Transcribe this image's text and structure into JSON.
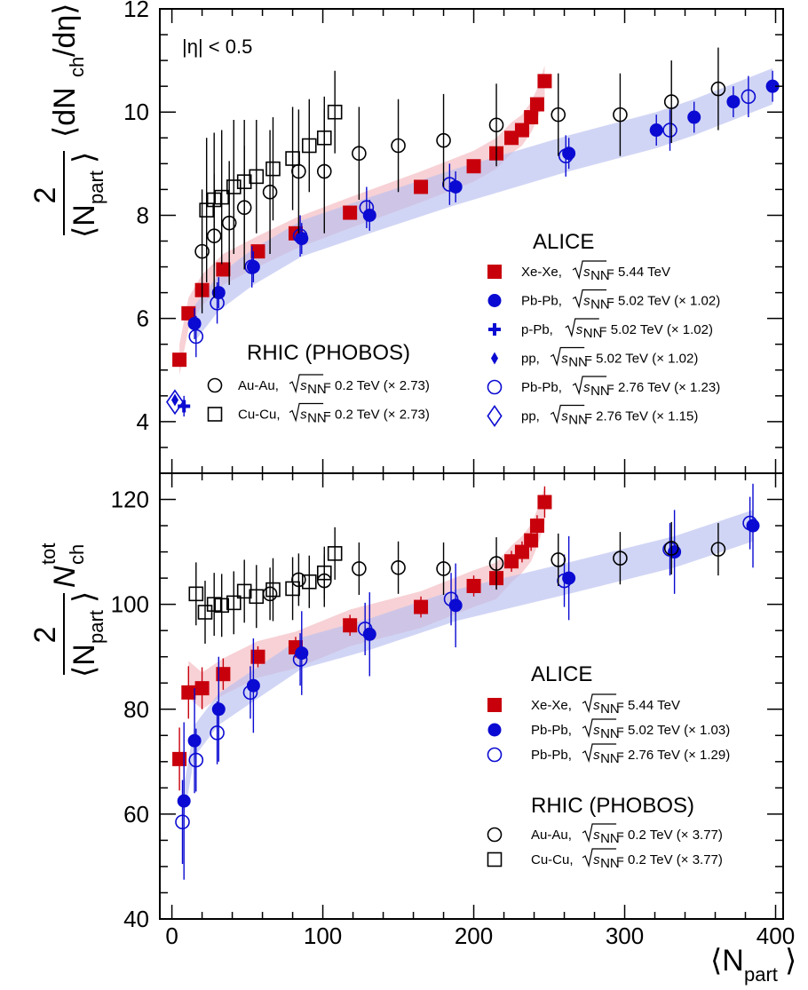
{
  "colors": {
    "xexe": "#c8000c",
    "pbpb": "#0a0ad2",
    "band_red": "#f2b8be",
    "band_blue": "#b8bff0",
    "rhic": "#000000"
  },
  "xaxis": {
    "label_main": "⟨N",
    "label_sub": "part",
    "label_close": "⟩",
    "ticks": [
      "0",
      "100",
      "200",
      "300",
      "400"
    ]
  },
  "top_panel": {
    "eta_cut": "|η| < 0.5",
    "ylabel_two": "2",
    "ylabel_den": "⟨N",
    "ylabel_den_sub": "part",
    "ylabel_den_close": "⟩",
    "ylabel_num": "⟨dN",
    "ylabel_num_sub": "ch",
    "ylabel_num_tail": " /dη⟩",
    "yticks": [
      "4",
      "6",
      "8",
      "10",
      "12"
    ],
    "alice_header": "ALICE",
    "rhic_header": "RHIC (PHOBOS)",
    "legend": [
      {
        "marker": "filled-square",
        "pre": "Xe-Xe, ",
        "post": " = 5.44 TeV"
      },
      {
        "marker": "filled-circle",
        "pre": "Pb-Pb, ",
        "post": " = 5.02 TeV (× 1.02)"
      },
      {
        "marker": "cross",
        "pre": "p-Pb, ",
        "post": " = 5.02 TeV (× 1.02)"
      },
      {
        "marker": "filled-diamond",
        "pre": "pp, ",
        "post": " = 5.02 TeV (× 1.02)"
      },
      {
        "marker": "open-circle-blue",
        "pre": "Pb-Pb, ",
        "post": " = 2.76 TeV (× 1.23)"
      },
      {
        "marker": "open-diamond",
        "pre": "pp, ",
        "post": " = 2.76 TeV (× 1.15)"
      }
    ],
    "rhic_legend": [
      {
        "marker": "open-circle",
        "pre": "Au-Au, ",
        "post": " = 0.2 TeV (× 2.73)"
      },
      {
        "marker": "open-square",
        "pre": "Cu-Cu, ",
        "post": " = 0.2 TeV (× 2.73)"
      }
    ]
  },
  "bottom_panel": {
    "ylabel_two": "2",
    "ylabel_den": "⟨N",
    "ylabel_den_sub": "part",
    "ylabel_den_close": "⟩",
    "ylabel_num": "N",
    "ylabel_num_sub": "ch",
    "ylabel_num_sup": "tot",
    "yticks": [
      "40",
      "60",
      "80",
      "100",
      "120"
    ],
    "alice_header": "ALICE",
    "rhic_header": "RHIC (PHOBOS)",
    "legend": [
      {
        "marker": "filled-square",
        "pre": "Xe-Xe, ",
        "post": " = 5.44 TeV"
      },
      {
        "marker": "filled-circle",
        "pre": "Pb-Pb, ",
        "post": " = 5.02 TeV (× 1.03)"
      },
      {
        "marker": "open-circle-blue",
        "pre": "Pb-Pb, ",
        "post": " = 2.76 TeV (× 1.29)"
      }
    ],
    "rhic_legend": [
      {
        "marker": "open-circle",
        "pre": "Au-Au, ",
        "post": " = 0.2 TeV (× 3.77)"
      },
      {
        "marker": "open-square",
        "pre": "Cu-Cu, ",
        "post": " = 0.2 TeV (× 3.77)"
      }
    ]
  },
  "sqrt_label": {
    "s": "s",
    "sub": "NN"
  },
  "chart_data": [
    {
      "type": "scatter",
      "panel": "top",
      "xlim": [
        -8,
        405
      ],
      "ylim": [
        3,
        12
      ],
      "grid": false,
      "series": [
        {
          "name": "Xe-Xe",
          "marker": "filled-square",
          "color": "xexe",
          "x": [
            5,
            11,
            20,
            34,
            57,
            82,
            118,
            165,
            200,
            215,
            225,
            232,
            238,
            242,
            247
          ],
          "y": [
            5.2,
            6.1,
            6.55,
            6.95,
            7.3,
            7.65,
            8.05,
            8.55,
            8.95,
            9.2,
            9.5,
            9.65,
            9.9,
            10.15,
            10.6
          ],
          "err": [
            0,
            0,
            0,
            0,
            0,
            0,
            0,
            0,
            0,
            0,
            0,
            0,
            0,
            0,
            0
          ]
        },
        {
          "name": "Pb-Pb 5.02",
          "marker": "filled-circle",
          "color": "pbpb",
          "x": [
            15,
            31,
            54,
            86,
            131,
            188,
            263,
            321,
            346,
            372,
            398
          ],
          "y": [
            5.9,
            6.5,
            7.0,
            7.55,
            8.0,
            8.55,
            9.2,
            9.65,
            9.9,
            10.2,
            10.5
          ],
          "err": [
            0.3,
            0.3,
            0.3,
            0.3,
            0.3,
            0.3,
            0.3,
            0.3,
            0.3,
            0.3,
            0.3
          ]
        },
        {
          "name": "p-Pb",
          "marker": "cross",
          "color": "pbpb",
          "x": [
            8
          ],
          "y": [
            4.3
          ],
          "err": [
            0.2
          ]
        },
        {
          "name": "pp 5.02",
          "marker": "filled-diamond",
          "color": "pbpb",
          "x": [
            2
          ],
          "y": [
            4.42
          ],
          "err": [
            0
          ]
        },
        {
          "name": "Pb-Pb 2.76",
          "marker": "open-circle-blue",
          "color": "pbpb",
          "x": [
            16,
            30,
            53,
            85,
            129,
            184,
            261,
            330,
            382
          ],
          "y": [
            5.65,
            6.3,
            7.0,
            7.6,
            8.15,
            8.6,
            9.15,
            9.65,
            10.3
          ],
          "err": [
            0.4,
            0.4,
            0.4,
            0.4,
            0.4,
            0.4,
            0.4,
            0.4,
            0.4
          ]
        },
        {
          "name": "pp 2.76",
          "marker": "open-diamond",
          "color": "pbpb",
          "x": [
            2
          ],
          "y": [
            4.38
          ],
          "err": [
            0
          ]
        },
        {
          "name": "Au-Au",
          "marker": "open-circle",
          "color": "rhic",
          "x": [
            20,
            28,
            38,
            48,
            65,
            84,
            101,
            124,
            150,
            180,
            215,
            256,
            297,
            331,
            362
          ],
          "y": [
            7.3,
            7.6,
            7.85,
            8.15,
            8.45,
            8.85,
            8.85,
            9.2,
            9.35,
            9.45,
            9.75,
            9.95,
            9.95,
            10.2,
            10.45
          ],
          "err": [
            1.2,
            1.2,
            1.2,
            1.2,
            1.2,
            1.2,
            1.2,
            0.9,
            0.9,
            0.9,
            0.8,
            0.8,
            0.8,
            0.8,
            0.8
          ]
        },
        {
          "name": "Cu-Cu",
          "marker": "open-square",
          "color": "rhic",
          "x": [
            23,
            28,
            33,
            41,
            48,
            56,
            67,
            80,
            91,
            101,
            108
          ],
          "y": [
            8.1,
            8.3,
            8.35,
            8.55,
            8.65,
            8.75,
            8.9,
            9.1,
            9.35,
            9.5,
            10.0
          ],
          "err": [
            1.4,
            1.3,
            1.3,
            1.3,
            1.2,
            1.1,
            1.0,
            1.0,
            0.9,
            0.8,
            0.8
          ]
        }
      ]
    },
    {
      "type": "scatter",
      "panel": "bottom",
      "xlim": [
        -8,
        405
      ],
      "ylim": [
        40,
        125
      ],
      "grid": false,
      "series": [
        {
          "name": "Xe-Xe",
          "marker": "filled-square",
          "color": "xexe",
          "x": [
            5,
            11,
            20,
            34,
            57,
            82,
            118,
            165,
            200,
            215,
            225,
            232,
            238,
            242,
            247
          ],
          "y": [
            70.5,
            83.2,
            84.0,
            86.7,
            90.0,
            91.8,
            96.0,
            99.5,
            103.5,
            105.0,
            108.2,
            110.0,
            112.2,
            115.0,
            119.5
          ],
          "err": [
            6,
            5,
            4,
            3,
            2,
            2,
            2,
            2,
            2,
            2,
            2,
            2,
            2,
            2,
            3
          ]
        },
        {
          "name": "Pb-Pb 5.02",
          "marker": "filled-circle",
          "color": "pbpb",
          "x": [
            8,
            15,
            31,
            54,
            86,
            131,
            188,
            263,
            333,
            385
          ],
          "y": [
            62.5,
            74.0,
            80.0,
            84.5,
            90.7,
            94.3,
            99.8,
            105.0,
            110.0,
            115.0
          ],
          "err": [
            15,
            10,
            10,
            9,
            8,
            8,
            8,
            8,
            8,
            8
          ]
        },
        {
          "name": "Pb-Pb 2.76",
          "marker": "open-circle-blue",
          "color": "pbpb",
          "x": [
            7,
            16,
            30,
            52,
            85,
            128,
            185,
            260,
            330,
            383
          ],
          "y": [
            58.5,
            70.3,
            75.5,
            83.2,
            89.5,
            95.3,
            101.0,
            104.5,
            110.5,
            115.5
          ],
          "err": [
            8,
            6,
            6,
            5,
            5,
            5,
            5,
            5,
            5,
            5
          ]
        },
        {
          "name": "Au-Au",
          "marker": "open-circle",
          "color": "rhic",
          "x": [
            65,
            84,
            101,
            124,
            150,
            180,
            215,
            256,
            297,
            331,
            362
          ],
          "y": [
            102.0,
            104.7,
            104.5,
            106.8,
            107.0,
            106.8,
            107.8,
            108.5,
            108.8,
            110.7,
            110.5
          ],
          "err": [
            5,
            5,
            5,
            5,
            5,
            5,
            5,
            5,
            5,
            5,
            5
          ]
        },
        {
          "name": "Cu-Cu",
          "marker": "open-square",
          "color": "rhic",
          "x": [
            16,
            22,
            28,
            33,
            41,
            48,
            56,
            67,
            80,
            91,
            101,
            108
          ],
          "y": [
            102.0,
            98.5,
            100.0,
            99.8,
            100.3,
            102.5,
            101.5,
            102.8,
            103.0,
            104.3,
            106.0,
            109.7
          ],
          "err": [
            6,
            6,
            6,
            6,
            6,
            6,
            6,
            6,
            6,
            5,
            5,
            5
          ]
        }
      ]
    }
  ]
}
